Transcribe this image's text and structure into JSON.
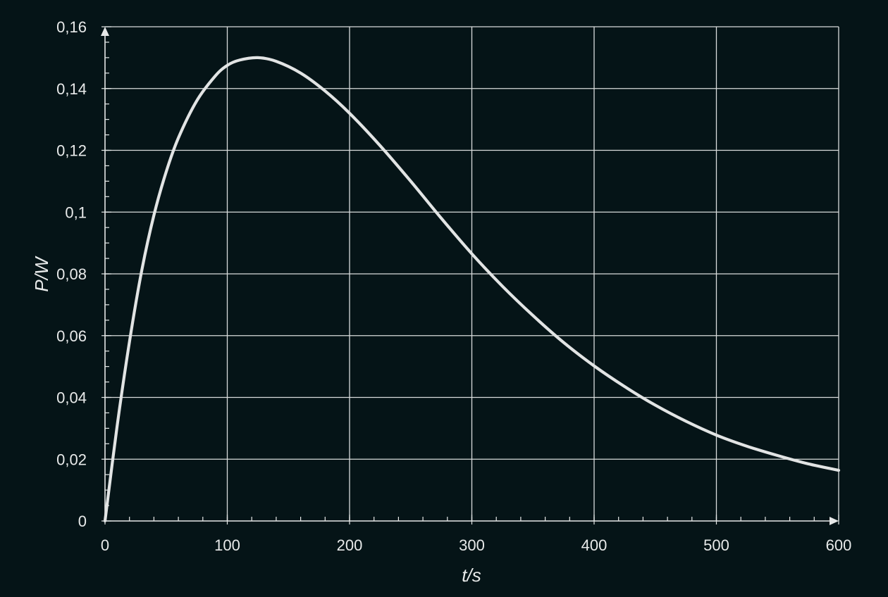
{
  "chart_data": {
    "type": "line",
    "xlabel": "t/s",
    "ylabel": "P/W",
    "xlim": [
      0,
      600
    ],
    "ylim": [
      0,
      0.16
    ],
    "x_ticks": [
      0,
      100,
      200,
      300,
      400,
      500,
      600
    ],
    "x_tick_labels": [
      "0",
      "100",
      "200",
      "300",
      "400",
      "500",
      "600"
    ],
    "y_ticks": [
      0,
      0.02,
      0.04,
      0.06,
      0.08,
      0.1,
      0.12,
      0.14,
      0.16
    ],
    "y_tick_labels": [
      "0",
      "0,02",
      "0,04",
      "0,06",
      "0,08",
      "0,1",
      "0,12",
      "0,14",
      "0,16"
    ],
    "x_minor_step": 20,
    "y_minor_step": 0.005,
    "grid": true,
    "series": [
      {
        "color": "#e2e4e4",
        "x": [
          0,
          10,
          20,
          30,
          40,
          50,
          60,
          75,
          90,
          100,
          110,
          125,
          140,
          160,
          180,
          200,
          225,
          250,
          275,
          300,
          325,
          350,
          375,
          400,
          425,
          450,
          475,
          500,
          525,
          550,
          575,
          600
        ],
        "y": [
          0,
          0.031,
          0.058,
          0.081,
          0.099,
          0.113,
          0.124,
          0.136,
          0.144,
          0.1475,
          0.1492,
          0.15,
          0.1488,
          0.145,
          0.1392,
          0.132,
          0.1215,
          0.11,
          0.098,
          0.0865,
          0.076,
          0.0665,
          0.0578,
          0.0502,
          0.0435,
          0.0375,
          0.0323,
          0.0278,
          0.0242,
          0.0212,
          0.0185,
          0.0164
        ]
      }
    ],
    "colors": {
      "background": "#051417",
      "grid": "#d9dcdc",
      "axis": "#e6e8e8",
      "text": "#e8eaea"
    }
  }
}
